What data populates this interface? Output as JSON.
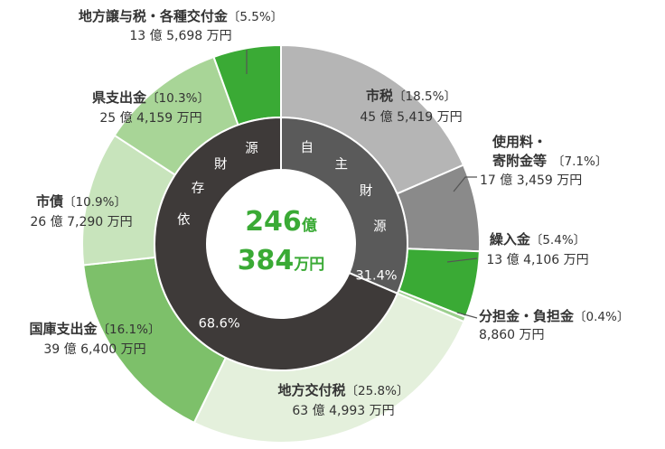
{
  "chart_data": {
    "type": "pie",
    "total": {
      "value": "246",
      "unit1": "億",
      "value2": "384",
      "unit2": "万円"
    },
    "categories_inner": [
      {
        "name_chars": [
          "自",
          "主",
          "財",
          "源"
        ],
        "percent": "31.4%",
        "value": 31.4,
        "color": "#5a5a5a"
      },
      {
        "name_chars": [
          "依",
          "存",
          "財",
          "源"
        ],
        "percent": "68.6%",
        "value": 68.6,
        "color": "#3e3a39"
      }
    ],
    "slices": [
      {
        "name": "市税",
        "percent": "〔18.5%〕",
        "value": 18.5,
        "amount": "45 億 5,419 万円",
        "color": "#b5b5b5"
      },
      {
        "name": "使用料・",
        "name2": "寄附金等",
        "percent": "〔7.1%〕",
        "value": 7.1,
        "amount": "17 億 3,459 万円",
        "color": "#8a8a8a"
      },
      {
        "name": "繰入金",
        "percent": "〔5.4%〕",
        "value": 5.4,
        "amount": "13 億 4,106 万円",
        "color": "#3aaa35"
      },
      {
        "name": "分担金・負担金",
        "percent": "〔0.4%〕",
        "value": 0.4,
        "amount": "8,860 万円",
        "color": "#9ccf8e"
      },
      {
        "name": "地方交付税",
        "percent": "〔25.8%〕",
        "value": 25.8,
        "amount": "63 億 4,993 万円",
        "color": "#e4f0dc"
      },
      {
        "name": "国庫支出金",
        "percent": "〔16.1%〕",
        "value": 16.1,
        "amount": "39 億 6,400 万円",
        "color": "#7dc06a"
      },
      {
        "name": "市債",
        "percent": "〔10.9%〕",
        "value": 10.9,
        "amount": "26 億 7,290 万円",
        "color": "#c8e4bc"
      },
      {
        "name": "県支出金",
        "percent": "〔10.3%〕",
        "value": 10.3,
        "amount": "25 億 4,159 万円",
        "color": "#a8d597"
      },
      {
        "name": "地方譲与税・各種交付金",
        "percent": "〔5.5%〕",
        "value": 5.5,
        "amount": "13 億 5,698 万円",
        "color": "#3aaa35"
      }
    ]
  }
}
